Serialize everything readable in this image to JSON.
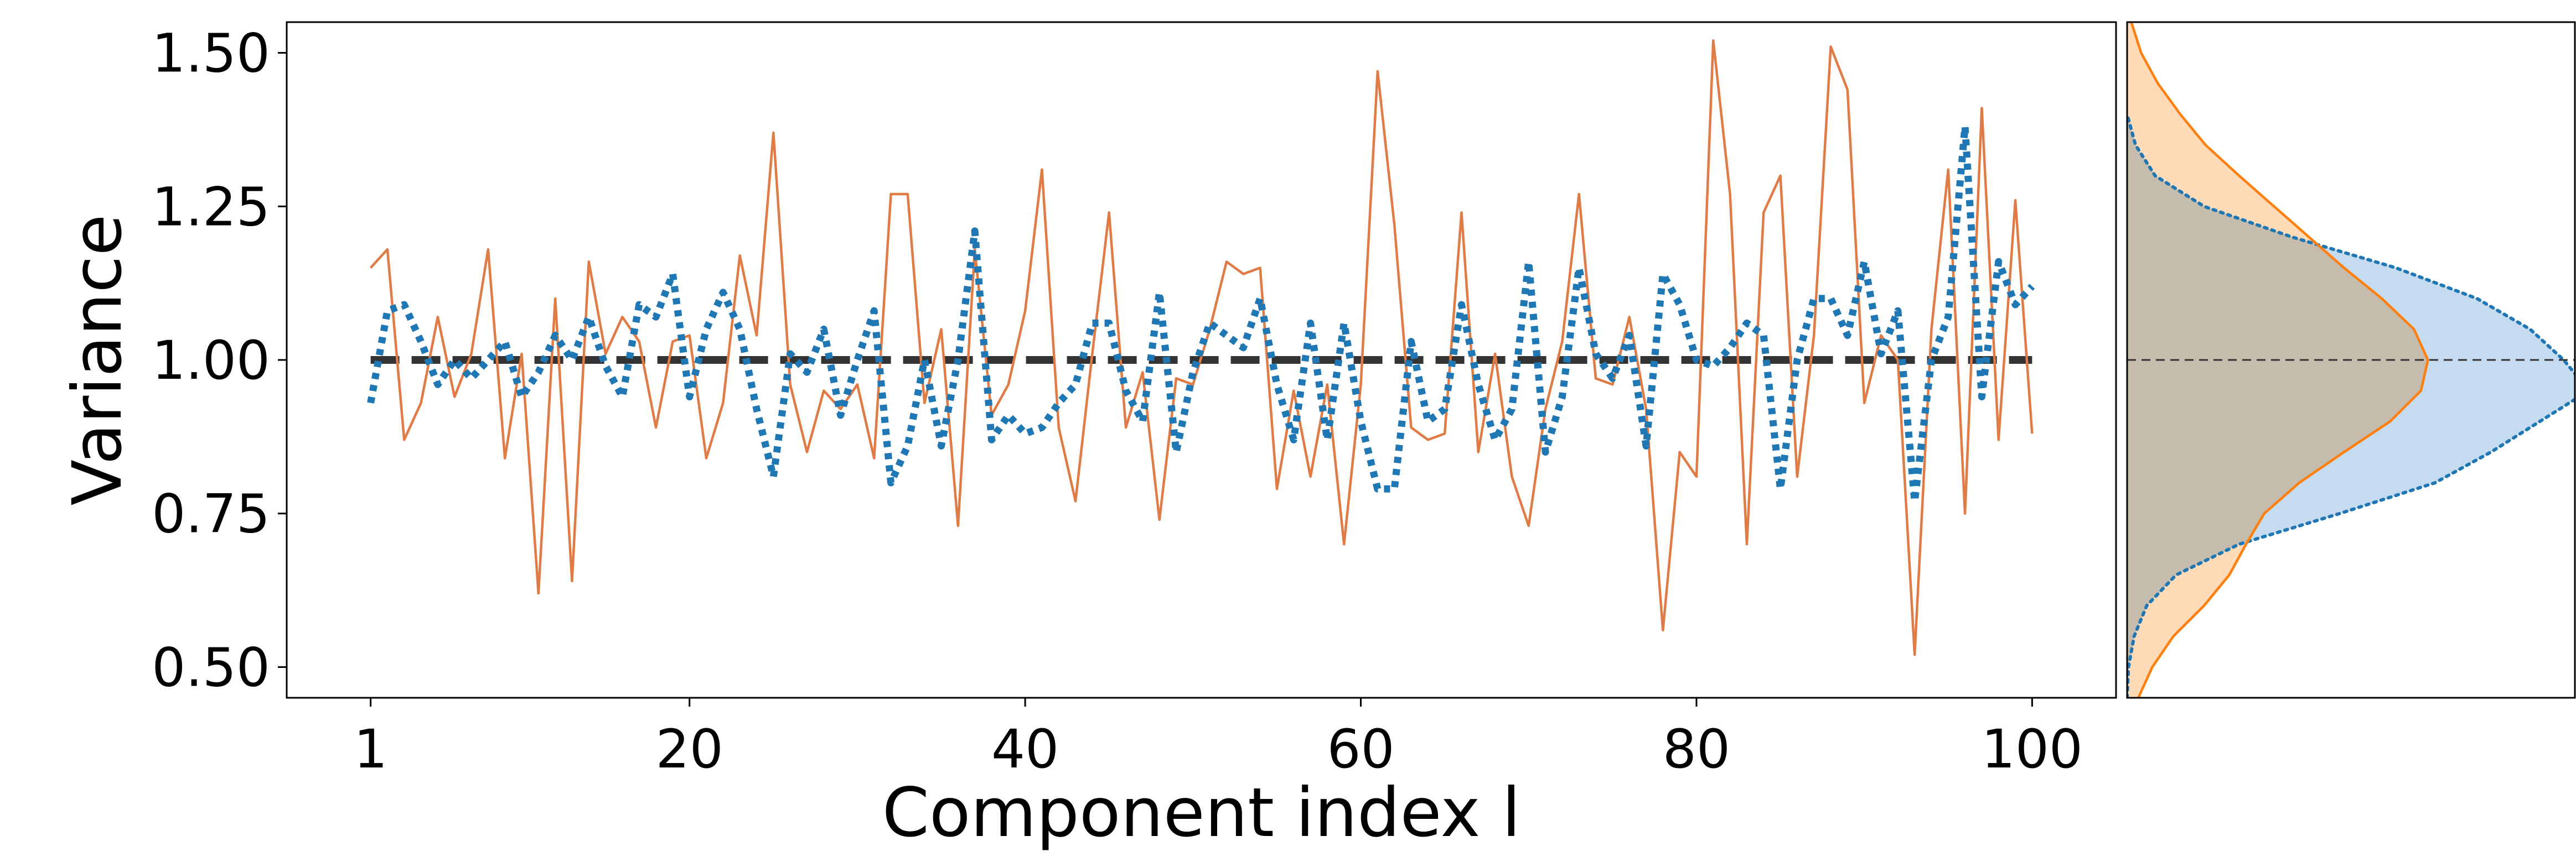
{
  "chart_data": [
    {
      "type": "line",
      "title": "",
      "xlabel": "Component index l",
      "ylabel": "Variance",
      "xlim": [
        -4,
        105
      ],
      "ylim": [
        0.45,
        1.55
      ],
      "xticks": [
        1,
        20,
        40,
        60,
        80,
        100
      ],
      "xtick_labels": [
        "1",
        "20",
        "40",
        "60",
        "80",
        "100"
      ],
      "yticks": [
        0.5,
        0.75,
        1.0,
        1.25,
        1.5
      ],
      "ytick_labels": [
        "0.50",
        "0.75",
        "1.00",
        "1.25",
        "1.50"
      ],
      "grid": false,
      "legend": "none",
      "x": [
        1,
        2,
        3,
        4,
        5,
        6,
        7,
        8,
        9,
        10,
        11,
        12,
        13,
        14,
        15,
        16,
        17,
        18,
        19,
        20,
        21,
        22,
        23,
        24,
        25,
        26,
        27,
        28,
        29,
        30,
        31,
        32,
        33,
        34,
        35,
        36,
        37,
        38,
        39,
        40,
        41,
        42,
        43,
        44,
        45,
        46,
        47,
        48,
        49,
        50,
        51,
        52,
        53,
        54,
        55,
        56,
        57,
        58,
        59,
        60,
        61,
        62,
        63,
        64,
        65,
        66,
        67,
        68,
        69,
        70,
        71,
        72,
        73,
        74,
        75,
        76,
        77,
        78,
        79,
        80,
        81,
        82,
        83,
        84,
        85,
        86,
        87,
        88,
        89,
        90,
        91,
        92,
        93,
        94,
        95,
        96,
        97,
        98,
        99,
        100
      ],
      "series": [
        {
          "style": "solid-thin",
          "color": "#e07b45",
          "values": [
            1.15,
            1.18,
            0.87,
            0.93,
            1.07,
            0.94,
            1.01,
            1.18,
            0.84,
            1.01,
            0.62,
            1.1,
            0.64,
            1.16,
            1.01,
            1.07,
            1.03,
            0.89,
            1.03,
            1.04,
            0.84,
            0.93,
            1.17,
            1.04,
            1.37,
            0.96,
            0.85,
            0.95,
            0.92,
            0.96,
            0.84,
            1.27,
            1.27,
            0.93,
            1.05,
            0.73,
            1.18,
            0.91,
            0.96,
            1.08,
            1.31,
            0.89,
            0.77,
            1.01,
            1.24,
            0.89,
            0.98,
            0.74,
            0.97,
            0.96,
            1.05,
            1.16,
            1.14,
            1.15,
            0.79,
            0.95,
            0.81,
            0.96,
            0.7,
            0.96,
            1.47,
            1.22,
            0.89,
            0.87,
            0.88,
            1.24,
            0.85,
            1.01,
            0.81,
            0.73,
            0.92,
            1.03,
            1.27,
            0.97,
            0.96,
            1.07,
            0.92,
            0.56,
            0.85,
            0.81,
            1.52,
            1.27,
            0.7,
            1.24,
            1.3,
            0.81,
            1.04,
            1.51,
            1.44,
            0.93,
            1.04,
            1.0,
            0.52,
            1.05,
            1.31,
            0.75,
            1.41,
            0.87,
            1.26,
            0.88
          ]
        },
        {
          "style": "dotted-thick",
          "color": "#1f77b4",
          "values": [
            0.93,
            1.08,
            1.09,
            1.03,
            0.96,
            1.0,
            0.97,
            1.0,
            1.03,
            0.94,
            0.98,
            1.04,
            1.0,
            1.07,
            0.99,
            0.94,
            1.09,
            1.07,
            1.14,
            0.94,
            1.05,
            1.11,
            1.05,
            0.92,
            0.81,
            1.01,
            0.98,
            1.05,
            0.91,
            1.0,
            1.08,
            0.8,
            0.86,
            1.0,
            0.86,
            1.0,
            1.21,
            0.87,
            0.91,
            0.88,
            0.89,
            0.93,
            0.96,
            1.06,
            1.06,
            0.95,
            0.9,
            1.11,
            0.85,
            0.98,
            1.06,
            1.04,
            1.02,
            1.1,
            0.96,
            0.87,
            1.06,
            0.87,
            1.06,
            0.9,
            0.79,
            0.79,
            1.03,
            0.9,
            0.92,
            1.09,
            0.96,
            0.87,
            0.92,
            1.16,
            0.85,
            0.94,
            1.15,
            1.01,
            0.97,
            1.04,
            0.86,
            1.14,
            1.09,
            1.0,
            0.99,
            1.02,
            1.06,
            1.04,
            0.79,
            1.0,
            1.1,
            1.1,
            1.04,
            1.16,
            1.01,
            1.08,
            0.77,
            1.0,
            1.07,
            1.38,
            0.94,
            1.16,
            1.09,
            1.12
          ]
        },
        {
          "style": "dashed-reference",
          "color": "#333333",
          "values_constant": 1.0
        }
      ]
    },
    {
      "type": "area",
      "title": "",
      "orientation": "horizontal-density",
      "shares_y_axis_with": "main",
      "ylim": [
        0.45,
        1.55
      ],
      "xlim": [
        0,
        3.2
      ],
      "reference_line_y": 1.0,
      "series": [
        {
          "style": "solid-fill",
          "color": "#ff7f0e",
          "fill": "#ffcc99",
          "y": [
            0.45,
            0.5,
            0.55,
            0.6,
            0.65,
            0.7,
            0.75,
            0.8,
            0.85,
            0.9,
            0.95,
            1.0,
            1.05,
            1.1,
            1.15,
            1.2,
            1.25,
            1.3,
            1.35,
            1.4,
            1.45,
            1.5,
            1.55
          ],
          "density": [
            0.08,
            0.18,
            0.33,
            0.55,
            0.73,
            0.85,
            0.98,
            1.23,
            1.55,
            1.88,
            2.1,
            2.15,
            2.05,
            1.82,
            1.55,
            1.3,
            1.05,
            0.8,
            0.56,
            0.38,
            0.22,
            0.1,
            0.03
          ]
        },
        {
          "style": "dotted-fill",
          "color": "#1f77b4",
          "fill": "#a6c8e8",
          "y": [
            0.45,
            0.5,
            0.55,
            0.6,
            0.65,
            0.7,
            0.75,
            0.8,
            0.85,
            0.9,
            0.95,
            1.0,
            1.05,
            1.1,
            1.15,
            1.2,
            1.25,
            1.3,
            1.35,
            1.4
          ],
          "density": [
            0.0,
            0.01,
            0.05,
            0.14,
            0.35,
            0.8,
            1.52,
            2.2,
            2.6,
            2.95,
            3.3,
            3.12,
            2.88,
            2.5,
            1.92,
            1.18,
            0.55,
            0.2,
            0.06,
            0.0
          ]
        }
      ]
    }
  ]
}
